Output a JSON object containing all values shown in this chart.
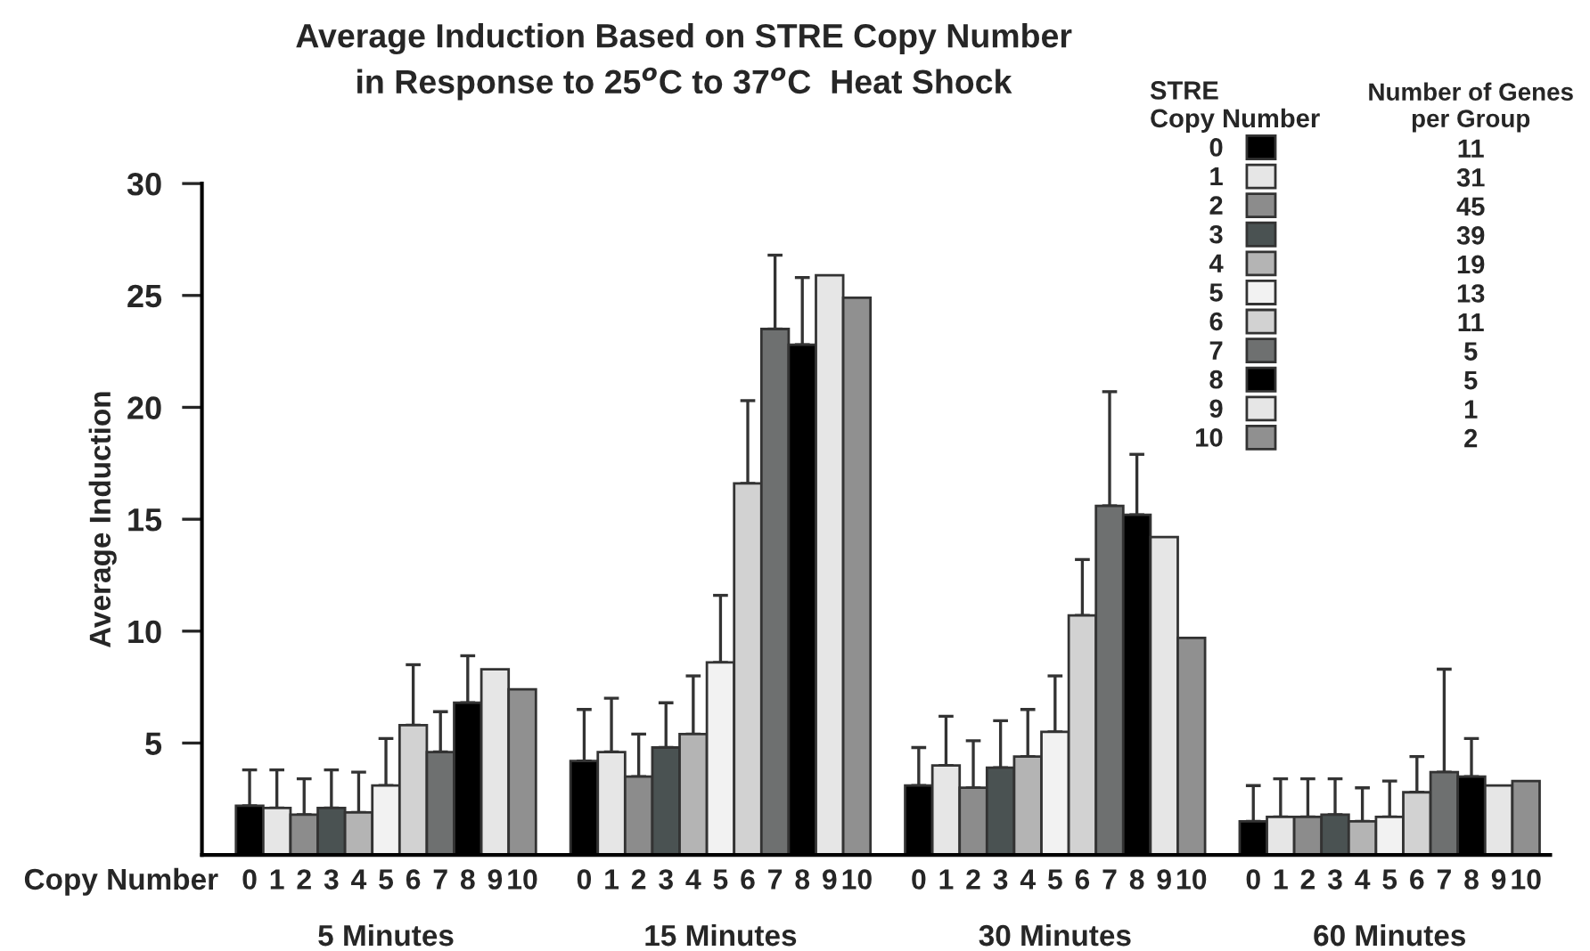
{
  "chart_data": {
    "type": "bar",
    "title": "Average Induction Based on STRE Copy Number\nin Response to 25$^{o}$C to 37$^{o}$C  Heat Shock",
    "ylabel": "Average Induction",
    "xlabel": "Copy Number",
    "legend_title": "STRE\nCopy Number",
    "categories": [
      "5 Minutes",
      "15 Minutes",
      "30 Minutes",
      "60 Minutes"
    ],
    "ylim": [
      0,
      30
    ],
    "yticks": [
      5,
      10,
      15,
      20,
      25,
      30
    ],
    "grid": false,
    "legend": "top right",
    "annotations": [
      "Number of Genes\nper Group",
      "11",
      "31",
      "45",
      "39",
      "19",
      "13",
      "11",
      "5",
      "5",
      "1",
      "2"
    ],
    "series": [
      {
        "name": "0",
        "color": "#000000",
        "values": [
          2.2,
          4.2,
          3.1,
          1.5
        ],
        "errors": [
          [
            2.2,
            3.8
          ],
          [
            4.2,
            6.5
          ],
          [
            3.1,
            4.8
          ],
          [
            1.5,
            3.1
          ]
        ]
      },
      {
        "name": "1",
        "color": "#e6e6e6",
        "values": [
          2.1,
          4.6,
          4.0,
          1.7
        ],
        "errors": [
          [
            2.1,
            3.8
          ],
          [
            4.6,
            7.0
          ],
          [
            4.0,
            6.2
          ],
          [
            1.7,
            3.4
          ]
        ]
      },
      {
        "name": "2",
        "color": "#8c8c8c",
        "values": [
          1.8,
          3.5,
          3.0,
          1.7
        ],
        "errors": [
          [
            1.8,
            3.4
          ],
          [
            3.5,
            5.4
          ],
          [
            3.0,
            5.1
          ],
          [
            1.7,
            3.4
          ]
        ]
      },
      {
        "name": "3",
        "color": "#4a5252",
        "values": [
          2.1,
          4.8,
          3.9,
          1.8
        ],
        "errors": [
          [
            2.1,
            3.8
          ],
          [
            4.8,
            6.8
          ],
          [
            3.9,
            6.0
          ],
          [
            1.8,
            3.4
          ]
        ]
      },
      {
        "name": "4",
        "color": "#b4b4b4",
        "values": [
          1.9,
          5.4,
          4.4,
          1.5
        ],
        "errors": [
          [
            1.9,
            3.7
          ],
          [
            5.4,
            8.0
          ],
          [
            4.4,
            6.5
          ],
          [
            1.5,
            3.0
          ]
        ]
      },
      {
        "name": "5",
        "color": "#f2f2f2",
        "values": [
          3.1,
          8.6,
          5.5,
          1.7
        ],
        "errors": [
          [
            3.1,
            5.2
          ],
          [
            8.6,
            11.6
          ],
          [
            5.5,
            8.0
          ],
          [
            1.7,
            3.3
          ]
        ]
      },
      {
        "name": "6",
        "color": "#d2d2d2",
        "values": [
          5.8,
          16.6,
          10.7,
          2.8
        ],
        "errors": [
          [
            5.8,
            8.5
          ],
          [
            16.6,
            20.3
          ],
          [
            10.7,
            13.2
          ],
          [
            2.8,
            4.4
          ]
        ]
      },
      {
        "name": "7",
        "color": "#6e7070",
        "values": [
          4.6,
          23.5,
          15.6,
          3.7
        ],
        "errors": [
          [
            4.6,
            6.4
          ],
          [
            23.5,
            26.8
          ],
          [
            15.6,
            20.7
          ],
          [
            3.7,
            8.3
          ]
        ]
      },
      {
        "name": "8",
        "color": "#000000",
        "values": [
          6.8,
          22.8,
          15.2,
          3.5
        ],
        "errors": [
          [
            6.8,
            8.9
          ],
          [
            22.8,
            25.8
          ],
          [
            15.2,
            17.9
          ],
          [
            3.5,
            5.2
          ]
        ]
      },
      {
        "name": "9",
        "color": "#e6e6e6",
        "values": [
          8.3,
          25.9,
          14.2,
          3.1
        ]
      },
      {
        "name": "10",
        "color": "#909090",
        "values": [
          7.4,
          24.9,
          9.7,
          3.3
        ]
      }
    ]
  }
}
